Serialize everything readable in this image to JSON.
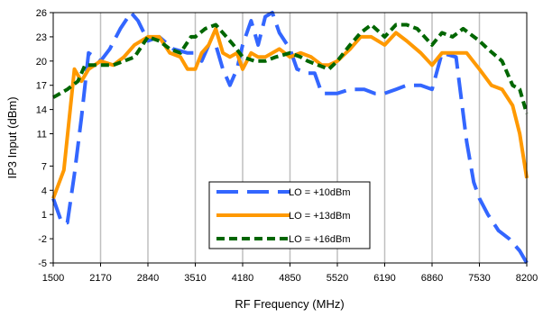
{
  "chart_data": {
    "type": "line",
    "title": "",
    "xlabel": "RF Frequency (MHz)",
    "ylabel": "IP3 Input (dBm)",
    "xlim": [
      1500,
      8200
    ],
    "ylim": [
      -5,
      26
    ],
    "x_ticks": [
      1500,
      2170,
      2840,
      3510,
      4180,
      4850,
      5520,
      6190,
      6860,
      7530,
      8200
    ],
    "y_ticks": [
      -5,
      -2,
      1,
      4,
      7,
      11,
      14,
      17,
      20,
      23,
      26
    ],
    "grid": "vertical",
    "legend_position": "bottom-center",
    "series": [
      {
        "name": "LO = +10dBm",
        "color": "#3366ff",
        "dash": "long-dash",
        "points": [
          [
            1500,
            3
          ],
          [
            1620,
            0
          ],
          [
            1700,
            0
          ],
          [
            1800,
            6
          ],
          [
            1900,
            13
          ],
          [
            2000,
            21
          ],
          [
            2170,
            20
          ],
          [
            2300,
            21.5
          ],
          [
            2450,
            24
          ],
          [
            2600,
            26
          ],
          [
            2700,
            25
          ],
          [
            2840,
            22.5
          ],
          [
            3000,
            23
          ],
          [
            3200,
            21.5
          ],
          [
            3400,
            21
          ],
          [
            3510,
            21
          ],
          [
            3600,
            20
          ],
          [
            3700,
            22
          ],
          [
            3800,
            22
          ],
          [
            3900,
            19
          ],
          [
            4000,
            17
          ],
          [
            4100,
            19
          ],
          [
            4180,
            22
          ],
          [
            4300,
            25
          ],
          [
            4400,
            22
          ],
          [
            4500,
            25.5
          ],
          [
            4600,
            26
          ],
          [
            4700,
            23.5
          ],
          [
            4850,
            21.5
          ],
          [
            4950,
            19
          ],
          [
            5100,
            18.5
          ],
          [
            5200,
            18.5
          ],
          [
            5300,
            16
          ],
          [
            5400,
            16
          ],
          [
            5520,
            16
          ],
          [
            5700,
            16.5
          ],
          [
            5900,
            16.5
          ],
          [
            6050,
            16
          ],
          [
            6190,
            16
          ],
          [
            6350,
            16.5
          ],
          [
            6500,
            17
          ],
          [
            6700,
            17
          ],
          [
            6860,
            16.5
          ],
          [
            7000,
            21
          ],
          [
            7200,
            20.5
          ],
          [
            7350,
            10
          ],
          [
            7450,
            5
          ],
          [
            7530,
            3
          ],
          [
            7650,
            1
          ],
          [
            7800,
            -1
          ],
          [
            7950,
            -2
          ],
          [
            8100,
            -3.5
          ],
          [
            8200,
            -5
          ]
        ]
      },
      {
        "name": "LO = +13dBm",
        "color": "#ff9900",
        "dash": "solid",
        "points": [
          [
            1500,
            3
          ],
          [
            1650,
            6.5
          ],
          [
            1800,
            19
          ],
          [
            1900,
            17.5
          ],
          [
            2000,
            19
          ],
          [
            2170,
            20
          ],
          [
            2350,
            19.5
          ],
          [
            2500,
            20.5
          ],
          [
            2650,
            22
          ],
          [
            2840,
            23
          ],
          [
            3000,
            23
          ],
          [
            3150,
            21
          ],
          [
            3300,
            20.5
          ],
          [
            3400,
            19
          ],
          [
            3510,
            19
          ],
          [
            3600,
            21
          ],
          [
            3700,
            22
          ],
          [
            3800,
            24
          ],
          [
            3900,
            21
          ],
          [
            4000,
            20.5
          ],
          [
            4100,
            21
          ],
          [
            4180,
            19
          ],
          [
            4300,
            21
          ],
          [
            4400,
            20.5
          ],
          [
            4500,
            20.5
          ],
          [
            4700,
            21.5
          ],
          [
            4850,
            20.5
          ],
          [
            5000,
            21
          ],
          [
            5150,
            20.5
          ],
          [
            5300,
            19.5
          ],
          [
            5400,
            19.5
          ],
          [
            5520,
            20
          ],
          [
            5700,
            21.5
          ],
          [
            5850,
            23
          ],
          [
            6000,
            23
          ],
          [
            6190,
            22
          ],
          [
            6350,
            23.5
          ],
          [
            6500,
            22.5
          ],
          [
            6700,
            21
          ],
          [
            6860,
            19.5
          ],
          [
            7000,
            21
          ],
          [
            7200,
            21
          ],
          [
            7350,
            21
          ],
          [
            7530,
            19
          ],
          [
            7700,
            17
          ],
          [
            7850,
            16.5
          ],
          [
            8000,
            14.5
          ],
          [
            8100,
            11
          ],
          [
            8200,
            5.5
          ]
        ]
      },
      {
        "name": "LO = +16dBm",
        "color": "#006600",
        "dash": "short-dash",
        "points": [
          [
            1500,
            15.5
          ],
          [
            1700,
            16.5
          ],
          [
            1850,
            17.5
          ],
          [
            1950,
            19.5
          ],
          [
            2170,
            19.5
          ],
          [
            2350,
            19.5
          ],
          [
            2500,
            20
          ],
          [
            2650,
            20.5
          ],
          [
            2840,
            23
          ],
          [
            3000,
            22.5
          ],
          [
            3150,
            21.5
          ],
          [
            3300,
            21
          ],
          [
            3450,
            23
          ],
          [
            3510,
            23
          ],
          [
            3650,
            24
          ],
          [
            3800,
            24.5
          ],
          [
            3950,
            23
          ],
          [
            4050,
            22
          ],
          [
            4180,
            20.5
          ],
          [
            4350,
            20
          ],
          [
            4500,
            20
          ],
          [
            4650,
            20.5
          ],
          [
            4850,
            21
          ],
          [
            5000,
            20.5
          ],
          [
            5100,
            20
          ],
          [
            5250,
            19.5
          ],
          [
            5400,
            19
          ],
          [
            5520,
            20
          ],
          [
            5700,
            22
          ],
          [
            5850,
            23.5
          ],
          [
            6000,
            24.5
          ],
          [
            6190,
            23
          ],
          [
            6350,
            24.5
          ],
          [
            6500,
            24.5
          ],
          [
            6650,
            24
          ],
          [
            6860,
            22
          ],
          [
            7000,
            23.5
          ],
          [
            7150,
            23
          ],
          [
            7300,
            24
          ],
          [
            7530,
            22.5
          ],
          [
            7650,
            21.5
          ],
          [
            7850,
            20
          ],
          [
            8000,
            17
          ],
          [
            8100,
            16.5
          ],
          [
            8200,
            13.5
          ]
        ]
      }
    ]
  }
}
